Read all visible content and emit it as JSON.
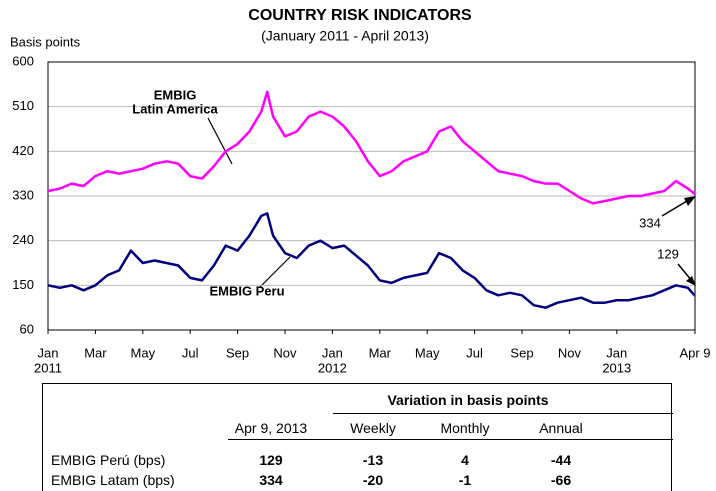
{
  "chart_data": {
    "type": "line",
    "title": "COUNTRY RISK INDICATORS",
    "subtitle": "(January 2011 - April 2013)",
    "y_label": "Basis points",
    "ylim": [
      60,
      600
    ],
    "yticks": [
      60,
      150,
      240,
      330,
      420,
      510,
      600
    ],
    "xlim": [
      0,
      27.3
    ],
    "xticks": [
      {
        "value": 0,
        "label": "Jan"
      },
      {
        "value": 2,
        "label": "Mar"
      },
      {
        "value": 4,
        "label": "May"
      },
      {
        "value": 6,
        "label": "Jul"
      },
      {
        "value": 8,
        "label": "Sep"
      },
      {
        "value": 10,
        "label": "Nov"
      },
      {
        "value": 12,
        "label": "Jan"
      },
      {
        "value": 14,
        "label": "Mar"
      },
      {
        "value": 16,
        "label": "May"
      },
      {
        "value": 18,
        "label": "Jul"
      },
      {
        "value": 20,
        "label": "Sep"
      },
      {
        "value": 22,
        "label": "Nov"
      },
      {
        "value": 24,
        "label": "Jan"
      },
      {
        "value": 27.3,
        "label": "Apr 9"
      }
    ],
    "xtick_years": [
      {
        "value": 0,
        "label": "2011"
      },
      {
        "value": 12,
        "label": "2012"
      },
      {
        "value": 24,
        "label": "2013"
      }
    ],
    "grid": true,
    "x": [
      0,
      0.5,
      1,
      1.5,
      2,
      2.5,
      3,
      3.5,
      4,
      4.5,
      5,
      5.5,
      6,
      6.5,
      7,
      7.5,
      8,
      8.5,
      9,
      9.25,
      9.5,
      10,
      10.5,
      11,
      11.5,
      12,
      12.5,
      13,
      13.5,
      14,
      14.5,
      15,
      15.5,
      16,
      16.5,
      17,
      17.5,
      18,
      18.5,
      19,
      19.5,
      20,
      20.5,
      21,
      21.5,
      22,
      22.5,
      23,
      23.5,
      24,
      24.5,
      25,
      25.5,
      26,
      26.5,
      27,
      27.3
    ],
    "series": [
      {
        "name": "EMBIG Latin America",
        "color": "#ff00ff",
        "values": [
          340,
          345,
          355,
          350,
          370,
          380,
          375,
          380,
          385,
          395,
          400,
          395,
          370,
          365,
          390,
          420,
          435,
          460,
          500,
          540,
          490,
          450,
          460,
          490,
          500,
          490,
          470,
          440,
          400,
          370,
          380,
          400,
          410,
          420,
          460,
          470,
          440,
          420,
          400,
          380,
          375,
          370,
          360,
          355,
          355,
          340,
          325,
          315,
          320,
          325,
          330,
          330,
          335,
          340,
          360,
          345,
          334
        ]
      },
      {
        "name": "EMBIG Peru",
        "color": "#000080",
        "values": [
          150,
          145,
          150,
          140,
          150,
          170,
          180,
          220,
          195,
          200,
          195,
          190,
          165,
          160,
          190,
          230,
          220,
          250,
          290,
          295,
          250,
          215,
          205,
          230,
          240,
          225,
          230,
          210,
          190,
          160,
          155,
          165,
          170,
          175,
          215,
          205,
          180,
          165,
          140,
          130,
          135,
          130,
          110,
          105,
          115,
          120,
          125,
          115,
          115,
          120,
          120,
          125,
          130,
          140,
          150,
          145,
          129
        ]
      }
    ],
    "annotations": [
      "EMBIG",
      "Latin America",
      "EMBIG Peru",
      "334",
      "129"
    ],
    "table": {
      "group_header": "Variation in basis points",
      "headers": [
        "Apr 9, 2013",
        "Weekly",
        "Monthly",
        "Annual"
      ],
      "rows": [
        [
          "EMBIG Perú (bps)",
          129,
          -13,
          4,
          -44
        ],
        [
          "EMBIG Latam (bps)",
          334,
          -20,
          -1,
          -66
        ]
      ]
    }
  }
}
